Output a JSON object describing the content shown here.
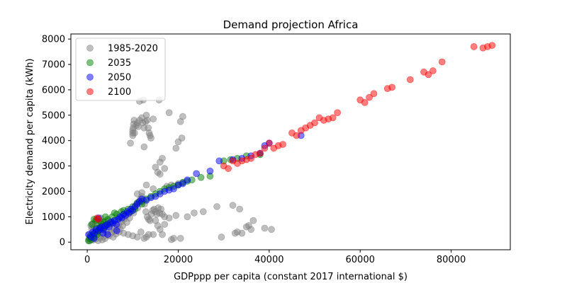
{
  "chart_data": {
    "type": "scatter",
    "title": "Demand projection Africa",
    "xlabel": "GDPppp per capita (constant 2017 international $)",
    "ylabel": "Electricity demand per capita (kWh)",
    "xlim": [
      -3600,
      93000
    ],
    "ylim": [
      -300,
      8200
    ],
    "xticks": [
      0,
      20000,
      40000,
      60000,
      80000
    ],
    "yticks": [
      0,
      1000,
      2000,
      3000,
      4000,
      5000,
      6000,
      7000,
      8000
    ],
    "grid": false,
    "legend": "upper-left",
    "point_alpha": 0.5,
    "series": [
      {
        "name": "1985-2020",
        "color": "#808080",
        "points": [
          [
            300,
            100
          ],
          [
            500,
            50
          ],
          [
            700,
            200
          ],
          [
            900,
            150
          ],
          [
            1200,
            80
          ],
          [
            1500,
            250
          ],
          [
            1800,
            120
          ],
          [
            2100,
            300
          ],
          [
            2400,
            60
          ],
          [
            2700,
            180
          ],
          [
            3000,
            350
          ],
          [
            3300,
            90
          ],
          [
            3600,
            220
          ],
          [
            3900,
            140
          ],
          [
            4200,
            400
          ],
          [
            4500,
            300
          ],
          [
            4800,
            250
          ],
          [
            5100,
            500
          ],
          [
            5400,
            380
          ],
          [
            5700,
            200
          ],
          [
            6000,
            450
          ],
          [
            6300,
            320
          ],
          [
            6600,
            600
          ],
          [
            6900,
            700
          ],
          [
            7200,
            520
          ],
          [
            7500,
            800
          ],
          [
            7800,
            650
          ],
          [
            8100,
            900
          ],
          [
            8400,
            1000
          ],
          [
            8700,
            780
          ],
          [
            9000,
            1100
          ],
          [
            9300,
            950
          ],
          [
            9600,
            1200
          ],
          [
            9900,
            1300
          ],
          [
            10200,
            1150
          ],
          [
            10500,
            1400
          ],
          [
            10800,
            1500
          ],
          [
            11100,
            1350
          ],
          [
            11400,
            1600
          ],
          [
            11700,
            1700
          ],
          [
            12000,
            1800
          ],
          [
            12300,
            1650
          ],
          [
            12600,
            1500
          ],
          [
            12900,
            1200
          ],
          [
            13200,
            1000
          ],
          [
            13500,
            900
          ],
          [
            13800,
            850
          ],
          [
            14100,
            1100
          ],
          [
            14400,
            1250
          ],
          [
            14700,
            1300
          ],
          [
            15000,
            1200
          ],
          [
            15300,
            1100
          ],
          [
            15600,
            1350
          ],
          [
            15900,
            1150
          ],
          [
            16200,
            1300
          ],
          [
            1500,
            600
          ],
          [
            2500,
            700
          ],
          [
            3500,
            800
          ],
          [
            4500,
            850
          ],
          [
            5500,
            750
          ],
          [
            2000,
            900
          ],
          [
            3000,
            950
          ],
          [
            4000,
            650
          ],
          [
            5000,
            700
          ],
          [
            6000,
            550
          ],
          [
            7000,
            400
          ],
          [
            8000,
            350
          ],
          [
            9000,
            300
          ],
          [
            10000,
            250
          ],
          [
            11000,
            200
          ],
          [
            1000,
            500
          ],
          [
            1500,
            400
          ],
          [
            2500,
            450
          ],
          [
            3500,
            500
          ],
          [
            500,
            300
          ],
          [
            800,
            650
          ],
          [
            1200,
            720
          ],
          [
            1800,
            820
          ],
          [
            2800,
            600
          ],
          [
            3800,
            560
          ],
          [
            10000,
            4400
          ],
          [
            10100,
            4500
          ],
          [
            10200,
            4650
          ],
          [
            10300,
            4800
          ],
          [
            10400,
            4300
          ],
          [
            10800,
            4600
          ],
          [
            11000,
            4700
          ],
          [
            11200,
            4550
          ],
          [
            11500,
            4800
          ],
          [
            12000,
            4900
          ],
          [
            12200,
            4700
          ],
          [
            12500,
            4500
          ],
          [
            12800,
            4750
          ],
          [
            13000,
            5000
          ],
          [
            13200,
            4800
          ],
          [
            13400,
            4500
          ],
          [
            13600,
            4300
          ],
          [
            13800,
            4200
          ],
          [
            14000,
            4100
          ],
          [
            14500,
            4850
          ],
          [
            11500,
            5550
          ],
          [
            12300,
            5600
          ],
          [
            15800,
            5600
          ],
          [
            18000,
            5100
          ],
          [
            20500,
            4750
          ],
          [
            21000,
            4950
          ],
          [
            20800,
            4100
          ],
          [
            20000,
            3950
          ],
          [
            19500,
            3700
          ],
          [
            16500,
            3300
          ],
          [
            16000,
            3150
          ],
          [
            15000,
            2950
          ],
          [
            15500,
            2750
          ],
          [
            16000,
            2680
          ],
          [
            12500,
            3750
          ],
          [
            10000,
            4300
          ],
          [
            10000,
            4200
          ],
          [
            9500,
            3900
          ],
          [
            17000,
            2900
          ],
          [
            14500,
            2100
          ],
          [
            17500,
            2200
          ],
          [
            18500,
            2250
          ],
          [
            20000,
            2300
          ],
          [
            21000,
            2350
          ],
          [
            13000,
            2250
          ],
          [
            12000,
            1950
          ],
          [
            11000,
            1900
          ],
          [
            16500,
            1100
          ],
          [
            17000,
            1000
          ],
          [
            18000,
            950
          ],
          [
            19500,
            1050
          ],
          [
            20500,
            150
          ],
          [
            22000,
            1000
          ],
          [
            23500,
            1150
          ],
          [
            25500,
            1200
          ],
          [
            28500,
            1400
          ],
          [
            29500,
            200
          ],
          [
            32000,
            1450
          ],
          [
            33500,
            1300
          ],
          [
            35000,
            600
          ],
          [
            36500,
            850
          ],
          [
            35500,
            650
          ],
          [
            36000,
            500
          ],
          [
            39000,
            550
          ],
          [
            40500,
            500
          ],
          [
            34000,
            350
          ],
          [
            33000,
            400
          ],
          [
            32500,
            350
          ],
          [
            14500,
            300
          ],
          [
            19000,
            150
          ],
          [
            16000,
            500
          ],
          [
            17000,
            700
          ],
          [
            15000,
            850
          ],
          [
            13500,
            300
          ],
          [
            13000,
            200
          ],
          [
            12500,
            150
          ],
          [
            11800,
            400
          ],
          [
            15500,
            650
          ],
          [
            16500,
            300
          ],
          [
            18500,
            100
          ]
        ]
      },
      {
        "name": "2035",
        "color": "#008000",
        "points": [
          [
            300,
            50
          ],
          [
            500,
            150
          ],
          [
            700,
            250
          ],
          [
            900,
            100
          ],
          [
            1200,
            300
          ],
          [
            1500,
            200
          ],
          [
            1800,
            400
          ],
          [
            2000,
            550
          ],
          [
            2200,
            300
          ],
          [
            2500,
            450
          ],
          [
            2800,
            600
          ],
          [
            3000,
            500
          ],
          [
            3200,
            700
          ],
          [
            3500,
            550
          ],
          [
            3800,
            800
          ],
          [
            4200,
            650
          ],
          [
            4500,
            900
          ],
          [
            5000,
            750
          ],
          [
            5500,
            1000
          ],
          [
            6000,
            850
          ],
          [
            6500,
            1100
          ],
          [
            7000,
            950
          ],
          [
            7500,
            1200
          ],
          [
            8000,
            1100
          ],
          [
            9000,
            1300
          ],
          [
            9500,
            1200
          ],
          [
            10000,
            1400
          ],
          [
            10500,
            1300
          ],
          [
            11000,
            1550
          ],
          [
            12000,
            1600
          ],
          [
            13000,
            1700
          ],
          [
            14000,
            1800
          ],
          [
            15000,
            1900
          ],
          [
            16000,
            2000
          ],
          [
            17000,
            2100
          ],
          [
            18000,
            2150
          ],
          [
            19000,
            2200
          ],
          [
            20000,
            2250
          ],
          [
            21000,
            2350
          ],
          [
            22000,
            2400
          ],
          [
            23000,
            2450
          ],
          [
            25000,
            2550
          ],
          [
            27000,
            2600
          ],
          [
            30000,
            3200
          ],
          [
            31500,
            3250
          ],
          [
            33000,
            3300
          ],
          [
            35000,
            3400
          ],
          [
            38000,
            3450
          ],
          [
            1500,
            900
          ],
          [
            2000,
            850
          ],
          [
            1000,
            700
          ],
          [
            3000,
            800
          ],
          [
            4000,
            1000
          ],
          [
            6000,
            1150
          ],
          [
            8000,
            1250
          ],
          [
            12000,
            1500
          ]
        ]
      },
      {
        "name": "2050",
        "color": "#0000ff",
        "points": [
          [
            300,
            300
          ],
          [
            800,
            200
          ],
          [
            1200,
            400
          ],
          [
            1600,
            350
          ],
          [
            2000,
            500
          ],
          [
            2400,
            450
          ],
          [
            2800,
            550
          ],
          [
            3200,
            600
          ],
          [
            3600,
            500
          ],
          [
            4000,
            650
          ],
          [
            4400,
            700
          ],
          [
            4800,
            600
          ],
          [
            5200,
            800
          ],
          [
            5600,
            750
          ],
          [
            6000,
            850
          ],
          [
            6400,
            700
          ],
          [
            6800,
            900
          ],
          [
            7200,
            1000
          ],
          [
            7600,
            950
          ],
          [
            8000,
            1100
          ],
          [
            8400,
            1050
          ],
          [
            8800,
            1200
          ],
          [
            9200,
            1150
          ],
          [
            9600,
            1300
          ],
          [
            10000,
            1250
          ],
          [
            10500,
            1400
          ],
          [
            11000,
            1500
          ],
          [
            11500,
            1600
          ],
          [
            12000,
            1700
          ],
          [
            13000,
            1650
          ],
          [
            14000,
            1750
          ],
          [
            15000,
            1800
          ],
          [
            16000,
            1900
          ],
          [
            17000,
            2000
          ],
          [
            18000,
            2050
          ],
          [
            19000,
            2100
          ],
          [
            20000,
            2250
          ],
          [
            21000,
            2300
          ],
          [
            22000,
            2450
          ],
          [
            24000,
            2700
          ],
          [
            27000,
            2800
          ],
          [
            29000,
            3200
          ],
          [
            32000,
            3250
          ],
          [
            34000,
            3300
          ],
          [
            36000,
            3400
          ],
          [
            38000,
            3500
          ],
          [
            39000,
            3800
          ],
          [
            40000,
            3900
          ],
          [
            47000,
            4200
          ],
          [
            2500,
            950
          ],
          [
            3500,
            350
          ],
          [
            4500,
            300
          ],
          [
            1500,
            150
          ],
          [
            6500,
            450
          ]
        ]
      },
      {
        "name": "2100",
        "color": "#ff0000",
        "points": [
          [
            2200,
            950
          ],
          [
            2400,
            900
          ],
          [
            30000,
            3000
          ],
          [
            31000,
            2900
          ],
          [
            32000,
            3200
          ],
          [
            33000,
            3100
          ],
          [
            34000,
            3200
          ],
          [
            35000,
            3250
          ],
          [
            36000,
            3300
          ],
          [
            37000,
            3450
          ],
          [
            38000,
            3500
          ],
          [
            39000,
            3700
          ],
          [
            40000,
            3900
          ],
          [
            41000,
            3700
          ],
          [
            42000,
            3800
          ],
          [
            43000,
            3850
          ],
          [
            45000,
            4300
          ],
          [
            46000,
            4200
          ],
          [
            47000,
            4400
          ],
          [
            48000,
            4500
          ],
          [
            49000,
            4600
          ],
          [
            50000,
            4700
          ],
          [
            51000,
            4900
          ],
          [
            52000,
            4800
          ],
          [
            53000,
            4850
          ],
          [
            54000,
            4900
          ],
          [
            55000,
            5100
          ],
          [
            60000,
            5600
          ],
          [
            61000,
            5500
          ],
          [
            62000,
            5700
          ],
          [
            63000,
            5850
          ],
          [
            66000,
            6050
          ],
          [
            67000,
            6100
          ],
          [
            71000,
            6400
          ],
          [
            74000,
            6700
          ],
          [
            75000,
            6600
          ],
          [
            76000,
            6750
          ],
          [
            78000,
            7100
          ],
          [
            85000,
            7700
          ],
          [
            87000,
            7650
          ],
          [
            88000,
            7700
          ],
          [
            89000,
            7750
          ]
        ]
      }
    ]
  }
}
